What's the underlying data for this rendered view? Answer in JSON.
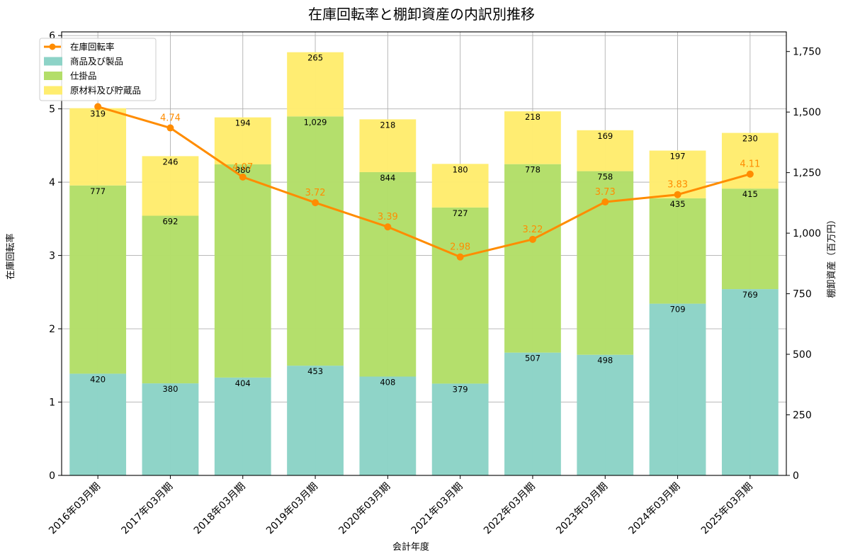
{
  "chart_data": {
    "type": "bar",
    "title": "在庫回転率と棚卸資産の内訳別推移",
    "xlabel": "会計年度",
    "ylabel_left": "在庫回転率",
    "ylabel_right": "棚卸資産（百万円）",
    "categories": [
      "2016年03月期",
      "2017年03月期",
      "2018年03月期",
      "2019年03月期",
      "2020年03月期",
      "2021年03月期",
      "2022年03月期",
      "2023年03月期",
      "2024年03月期",
      "2025年03月期"
    ],
    "series": [
      {
        "name": "商品及び製品",
        "axis": "right",
        "color": "#8dd3c7",
        "values": [
          420,
          380,
          404,
          453,
          408,
          379,
          507,
          498,
          709,
          769
        ]
      },
      {
        "name": "仕掛品",
        "axis": "right",
        "color": "#b3de69",
        "values": [
          777,
          692,
          880,
          1029,
          844,
          727,
          778,
          758,
          435,
          415
        ]
      },
      {
        "name": "原材料及び貯蔵品",
        "axis": "right",
        "color": "#ffed6f",
        "values": [
          319,
          246,
          194,
          265,
          218,
          180,
          218,
          169,
          197,
          230
        ]
      }
    ],
    "line_series": {
      "name": "在庫回転率",
      "axis": "left",
      "color": "#ff8c00",
      "values": [
        5.03,
        4.74,
        4.07,
        3.72,
        3.39,
        2.98,
        3.22,
        3.73,
        3.83,
        4.11
      ]
    },
    "ylim_left": [
      0,
      6.05
    ],
    "yticks_left": [
      0,
      1,
      2,
      3,
      4,
      5,
      6
    ],
    "ylim_right": [
      0,
      1831
    ],
    "yticks_right": [
      0,
      250,
      500,
      750,
      1000,
      1250,
      1500,
      1750
    ],
    "grid": true,
    "legend": "top-left"
  }
}
